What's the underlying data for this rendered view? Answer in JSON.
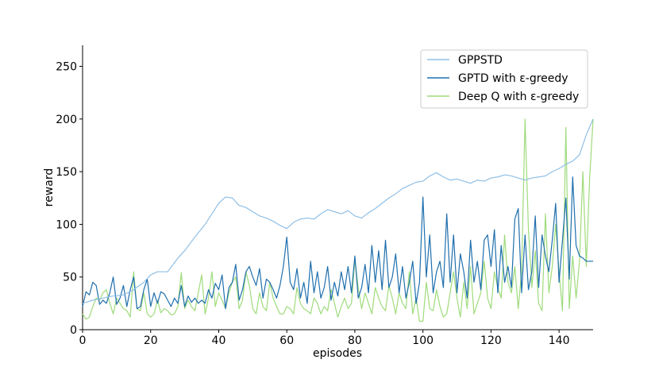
{
  "chart_data": {
    "type": "line",
    "title": "",
    "xlabel": "episodes",
    "ylabel": "reward",
    "xlim": [
      0,
      150
    ],
    "ylim": [
      0,
      270
    ],
    "xticks": [
      0,
      20,
      40,
      60,
      80,
      100,
      120,
      140
    ],
    "yticks": [
      0,
      50,
      100,
      150,
      200,
      250
    ],
    "legend_position": "top-right",
    "grid": false,
    "series": [
      {
        "name": "GPPSTD",
        "color": "#8fbfe6",
        "x": [
          0,
          3,
          6,
          9,
          12,
          15,
          18,
          20,
          22,
          25,
          28,
          30,
          33,
          36,
          38,
          40,
          42,
          44,
          46,
          48,
          50,
          52,
          54,
          56,
          58,
          60,
          62,
          64,
          66,
          68,
          70,
          72,
          74,
          76,
          78,
          80,
          82,
          84,
          86,
          88,
          90,
          92,
          94,
          96,
          98,
          100,
          102,
          104,
          106,
          108,
          110,
          112,
          114,
          116,
          118,
          120,
          122,
          124,
          126,
          128,
          130,
          132,
          134,
          136,
          138,
          140,
          142,
          144,
          146,
          148,
          150
        ],
        "values": [
          25,
          28,
          30,
          32,
          33,
          38,
          45,
          52,
          55,
          55,
          68,
          75,
          88,
          100,
          110,
          120,
          126,
          125,
          118,
          116,
          112,
          108,
          106,
          103,
          99,
          96,
          102,
          105,
          106,
          105,
          110,
          114,
          112,
          110,
          113,
          108,
          106,
          111,
          115,
          120,
          125,
          129,
          134,
          137,
          140,
          141,
          146,
          149,
          145,
          142,
          143,
          141,
          139,
          142,
          141,
          144,
          145,
          147,
          146,
          144,
          142,
          144,
          145,
          146,
          150,
          153,
          157,
          160,
          166,
          185,
          200
        ]
      },
      {
        "name": "GPTD with ε-greedy",
        "color": "#1f6fad",
        "x": [
          0,
          1,
          2,
          3,
          4,
          5,
          6,
          7,
          8,
          9,
          10,
          11,
          12,
          13,
          14,
          15,
          16,
          17,
          18,
          19,
          20,
          21,
          22,
          23,
          24,
          25,
          26,
          27,
          28,
          29,
          30,
          31,
          32,
          33,
          34,
          35,
          36,
          37,
          38,
          39,
          40,
          41,
          42,
          43,
          44,
          45,
          46,
          47,
          48,
          49,
          50,
          51,
          52,
          53,
          54,
          55,
          56,
          57,
          58,
          59,
          60,
          61,
          62,
          63,
          64,
          65,
          66,
          67,
          68,
          69,
          70,
          71,
          72,
          73,
          74,
          75,
          76,
          77,
          78,
          79,
          80,
          81,
          82,
          83,
          84,
          85,
          86,
          87,
          88,
          89,
          90,
          91,
          92,
          93,
          94,
          95,
          96,
          97,
          98,
          99,
          100,
          101,
          102,
          103,
          104,
          105,
          106,
          107,
          108,
          109,
          110,
          111,
          112,
          113,
          114,
          115,
          116,
          117,
          118,
          119,
          120,
          121,
          122,
          123,
          124,
          125,
          126,
          127,
          128,
          129,
          130,
          131,
          132,
          133,
          134,
          135,
          136,
          137,
          138,
          139,
          140,
          141,
          142,
          143,
          144,
          145,
          146,
          147,
          148,
          149,
          150
        ],
        "values": [
          22,
          36,
          33,
          45,
          42,
          24,
          28,
          25,
          35,
          50,
          24,
          30,
          42,
          22,
          38,
          50,
          20,
          22,
          38,
          48,
          22,
          35,
          25,
          36,
          34,
          28,
          22,
          30,
          25,
          42,
          22,
          32,
          26,
          30,
          25,
          28,
          25,
          38,
          30,
          44,
          38,
          52,
          20,
          40,
          45,
          62,
          28,
          38,
          55,
          60,
          50,
          42,
          58,
          30,
          48,
          45,
          38,
          30,
          42,
          60,
          88,
          45,
          38,
          58,
          30,
          45,
          25,
          65,
          35,
          55,
          30,
          40,
          60,
          28,
          45,
          32,
          55,
          38,
          60,
          35,
          70,
          30,
          40,
          62,
          35,
          80,
          45,
          75,
          38,
          85,
          40,
          50,
          72,
          35,
          60,
          30,
          45,
          65,
          25,
          45,
          126,
          50,
          90,
          35,
          55,
          65,
          40,
          110,
          45,
          90,
          35,
          72,
          55,
          30,
          85,
          45,
          65,
          38,
          85,
          90,
          60,
          95,
          35,
          80,
          45,
          60,
          40,
          105,
          115,
          35,
          90,
          38,
          55,
          108,
          40,
          90,
          70,
          55,
          85,
          120,
          45,
          85,
          125,
          48,
          145,
          80,
          70,
          68,
          65,
          65,
          65
        ]
      },
      {
        "name": "Deep Q with ε-greedy",
        "color": "#9fdb7c",
        "x": [
          0,
          1,
          2,
          3,
          4,
          5,
          6,
          7,
          8,
          9,
          10,
          11,
          12,
          13,
          14,
          15,
          16,
          17,
          18,
          19,
          20,
          21,
          22,
          23,
          24,
          25,
          26,
          27,
          28,
          29,
          30,
          31,
          32,
          33,
          34,
          35,
          36,
          37,
          38,
          39,
          40,
          41,
          42,
          43,
          44,
          45,
          46,
          47,
          48,
          49,
          50,
          51,
          52,
          53,
          54,
          55,
          56,
          57,
          58,
          59,
          60,
          61,
          62,
          63,
          64,
          65,
          66,
          67,
          68,
          69,
          70,
          71,
          72,
          73,
          74,
          75,
          76,
          77,
          78,
          79,
          80,
          81,
          82,
          83,
          84,
          85,
          86,
          87,
          88,
          89,
          90,
          91,
          92,
          93,
          94,
          95,
          96,
          97,
          98,
          99,
          100,
          101,
          102,
          103,
          104,
          105,
          106,
          107,
          108,
          109,
          110,
          111,
          112,
          113,
          114,
          115,
          116,
          117,
          118,
          119,
          120,
          121,
          122,
          123,
          124,
          125,
          126,
          127,
          128,
          129,
          130,
          131,
          132,
          133,
          134,
          135,
          136,
          137,
          138,
          139,
          140,
          141,
          142,
          143,
          144,
          145,
          146,
          147,
          148,
          149,
          150
        ],
        "values": [
          15,
          10,
          12,
          22,
          30,
          28,
          35,
          38,
          25,
          15,
          30,
          25,
          20,
          18,
          12,
          55,
          20,
          18,
          35,
          15,
          12,
          15,
          28,
          16,
          20,
          18,
          14,
          15,
          22,
          54,
          20,
          28,
          22,
          18,
          35,
          52,
          15,
          30,
          55,
          22,
          35,
          28,
          20,
          35,
          45,
          50,
          20,
          28,
          55,
          42,
          20,
          15,
          35,
          22,
          18,
          45,
          30,
          22,
          15,
          15,
          22,
          20,
          15,
          40,
          25,
          20,
          18,
          15,
          30,
          25,
          15,
          22,
          18,
          38,
          25,
          12,
          22,
          30,
          20,
          25,
          66,
          40,
          20,
          35,
          25,
          15,
          40,
          30,
          22,
          18,
          42,
          30,
          15,
          35,
          25,
          20,
          55,
          15,
          30,
          8,
          8,
          45,
          20,
          18,
          38,
          22,
          12,
          15,
          35,
          55,
          30,
          12,
          45,
          20,
          60,
          15,
          25,
          35,
          65,
          30,
          20,
          55,
          40,
          30,
          90,
          45,
          35,
          60,
          20,
          55,
          200,
          95,
          40,
          75,
          25,
          18,
          110,
          35,
          60,
          100,
          55,
          18,
          192,
          20,
          70,
          30,
          65,
          150,
          60,
          145,
          200
        ]
      }
    ]
  }
}
